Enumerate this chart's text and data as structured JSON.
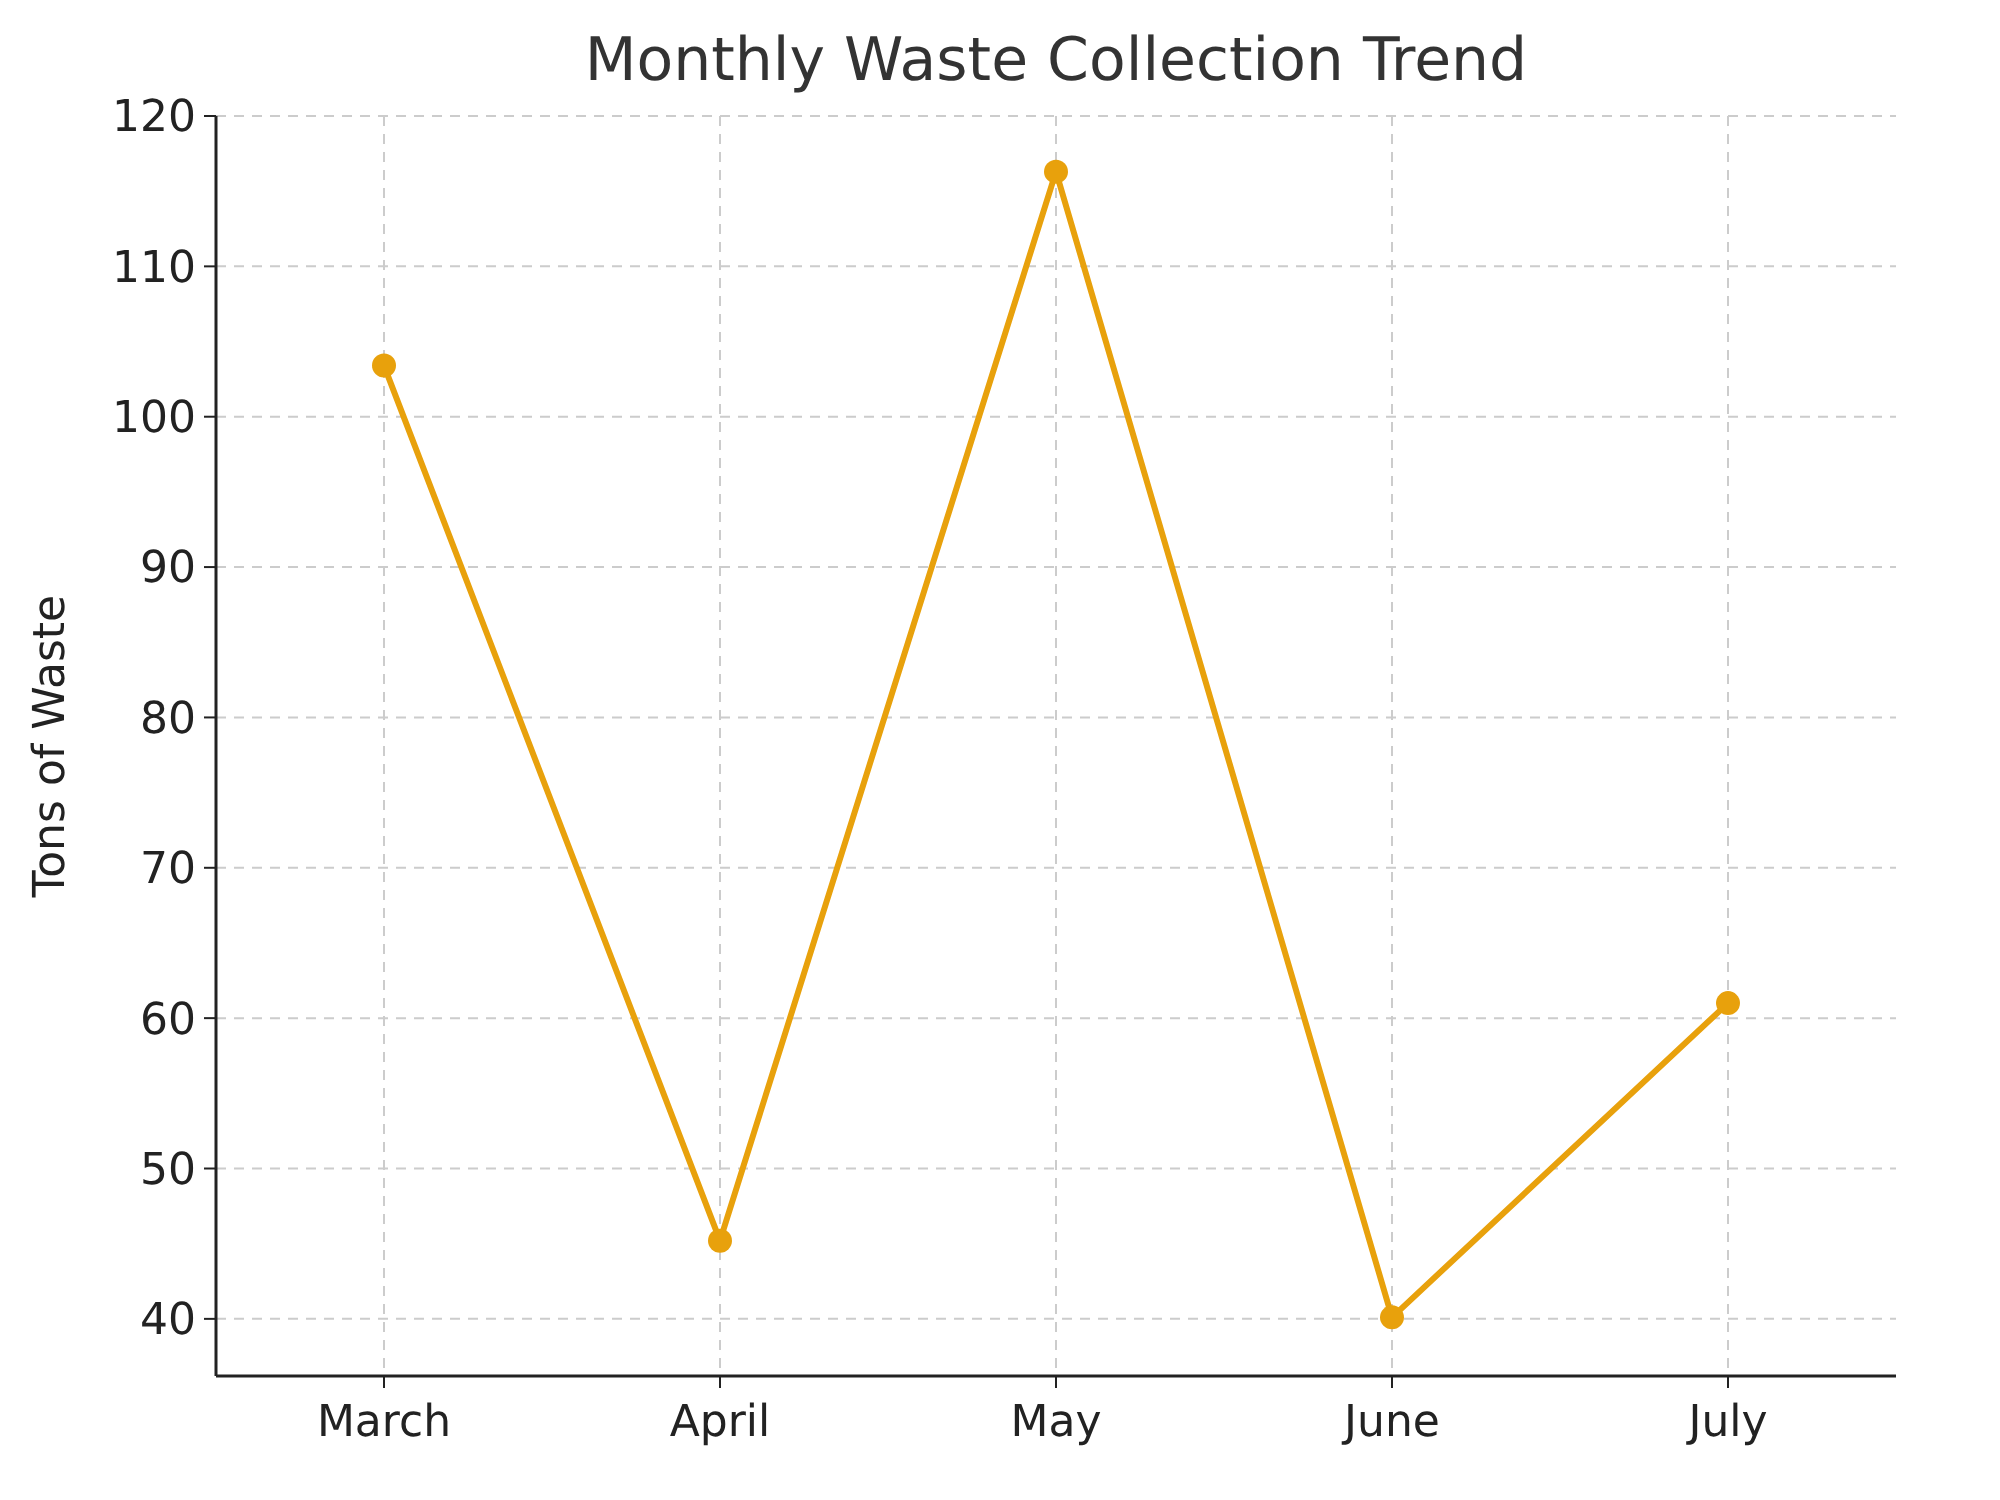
{
  "chart_data": {
    "type": "line",
    "title": "Monthly Waste Collection Trend",
    "ylabel": "Tons of Waste",
    "categories": [
      "March",
      "April",
      "May",
      "June",
      "July"
    ],
    "series": [
      {
        "color": "#e8a10c",
        "values": [
          103.4,
          45.2,
          116.3,
          40.1,
          61
        ]
      }
    ],
    "ylim": [
      36.2,
      120
    ],
    "yticks": [
      40,
      50,
      60,
      70,
      80,
      90,
      100,
      110,
      120
    ],
    "grid": true,
    "marker": "circle",
    "line_style": "solid"
  }
}
